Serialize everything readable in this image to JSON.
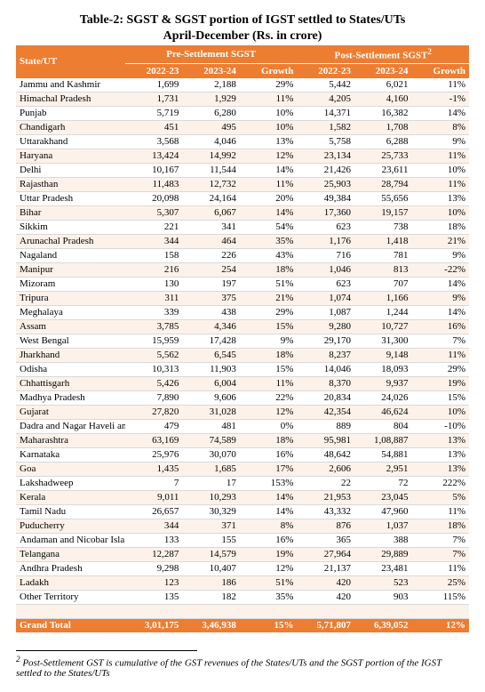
{
  "title_line1": "Table-2: SGST & SGST portion of IGST settled to States/UTs",
  "title_line2": "April-December (Rs. in crore)",
  "header": {
    "state": "State/UT",
    "group1": "Pre-Settlement SGST",
    "group2": "Post-Settlement SGST",
    "sup": "2",
    "y1": "2022-23",
    "y2": "2023-24",
    "growth": "Growth"
  },
  "rows": [
    {
      "s": "Jammu and Kashmir",
      "a": "1,699",
      "b": "2,188",
      "c": "29%",
      "d": "5,442",
      "e": "6,021",
      "f": "11%"
    },
    {
      "s": "Himachal Pradesh",
      "a": "1,731",
      "b": "1,929",
      "c": "11%",
      "d": "4,205",
      "e": "4,160",
      "f": "-1%"
    },
    {
      "s": "Punjab",
      "a": "5,719",
      "b": "6,280",
      "c": "10%",
      "d": "14,371",
      "e": "16,382",
      "f": "14%"
    },
    {
      "s": "Chandigarh",
      "a": "451",
      "b": "495",
      "c": "10%",
      "d": "1,582",
      "e": "1,708",
      "f": "8%"
    },
    {
      "s": "Uttarakhand",
      "a": "3,568",
      "b": "4,046",
      "c": "13%",
      "d": "5,758",
      "e": "6,288",
      "f": "9%"
    },
    {
      "s": "Haryana",
      "a": "13,424",
      "b": "14,992",
      "c": "12%",
      "d": "23,134",
      "e": "25,733",
      "f": "11%"
    },
    {
      "s": "Delhi",
      "a": "10,167",
      "b": "11,544",
      "c": "14%",
      "d": "21,426",
      "e": "23,611",
      "f": "10%"
    },
    {
      "s": "Rajasthan",
      "a": "11,483",
      "b": "12,732",
      "c": "11%",
      "d": "25,903",
      "e": "28,794",
      "f": "11%"
    },
    {
      "s": "Uttar Pradesh",
      "a": "20,098",
      "b": "24,164",
      "c": "20%",
      "d": "49,384",
      "e": "55,656",
      "f": "13%"
    },
    {
      "s": "Bihar",
      "a": "5,307",
      "b": "6,067",
      "c": "14%",
      "d": "17,360",
      "e": "19,157",
      "f": "10%"
    },
    {
      "s": "Sikkim",
      "a": "221",
      "b": "341",
      "c": "54%",
      "d": "623",
      "e": "738",
      "f": "18%"
    },
    {
      "s": "Arunachal Pradesh",
      "a": "344",
      "b": "464",
      "c": "35%",
      "d": "1,176",
      "e": "1,418",
      "f": "21%"
    },
    {
      "s": "Nagaland",
      "a": "158",
      "b": "226",
      "c": "43%",
      "d": "716",
      "e": "781",
      "f": "9%"
    },
    {
      "s": "Manipur",
      "a": "216",
      "b": "254",
      "c": "18%",
      "d": "1,046",
      "e": "813",
      "f": "-22%"
    },
    {
      "s": "Mizoram",
      "a": "130",
      "b": "197",
      "c": "51%",
      "d": "623",
      "e": "707",
      "f": "14%"
    },
    {
      "s": "Tripura",
      "a": "311",
      "b": "375",
      "c": "21%",
      "d": "1,074",
      "e": "1,166",
      "f": "9%"
    },
    {
      "s": "Meghalaya",
      "a": "339",
      "b": "438",
      "c": "29%",
      "d": "1,087",
      "e": "1,244",
      "f": "14%"
    },
    {
      "s": "Assam",
      "a": "3,785",
      "b": "4,346",
      "c": "15%",
      "d": "9,280",
      "e": "10,727",
      "f": "16%"
    },
    {
      "s": "West Bengal",
      "a": "15,959",
      "b": "17,428",
      "c": "9%",
      "d": "29,170",
      "e": "31,300",
      "f": "7%"
    },
    {
      "s": "Jharkhand",
      "a": "5,562",
      "b": "6,545",
      "c": "18%",
      "d": "8,237",
      "e": "9,148",
      "f": "11%"
    },
    {
      "s": "Odisha",
      "a": "10,313",
      "b": "11,903",
      "c": "15%",
      "d": "14,046",
      "e": "18,093",
      "f": "29%"
    },
    {
      "s": "Chhattisgarh",
      "a": "5,426",
      "b": "6,004",
      "c": "11%",
      "d": "8,370",
      "e": "9,937",
      "f": "19%"
    },
    {
      "s": "Madhya Pradesh",
      "a": "7,890",
      "b": "9,606",
      "c": "22%",
      "d": "20,834",
      "e": "24,026",
      "f": "15%"
    },
    {
      "s": "Gujarat",
      "a": "27,820",
      "b": "31,028",
      "c": "12%",
      "d": "42,354",
      "e": "46,624",
      "f": "10%"
    },
    {
      "s": "Dadra and Nagar Haveli an",
      "a": "479",
      "b": "481",
      "c": "0%",
      "d": "889",
      "e": "804",
      "f": "-10%"
    },
    {
      "s": "Maharashtra",
      "a": "63,169",
      "b": "74,589",
      "c": "18%",
      "d": "95,981",
      "e": "1,08,887",
      "f": "13%"
    },
    {
      "s": "Karnataka",
      "a": "25,976",
      "b": "30,070",
      "c": "16%",
      "d": "48,642",
      "e": "54,881",
      "f": "13%"
    },
    {
      "s": "Goa",
      "a": "1,435",
      "b": "1,685",
      "c": "17%",
      "d": "2,606",
      "e": "2,951",
      "f": "13%"
    },
    {
      "s": "Lakshadweep",
      "a": "7",
      "b": "17",
      "c": "153%",
      "d": "22",
      "e": "72",
      "f": "222%"
    },
    {
      "s": "Kerala",
      "a": "9,011",
      "b": "10,293",
      "c": "14%",
      "d": "21,953",
      "e": "23,045",
      "f": "5%"
    },
    {
      "s": "Tamil Nadu",
      "a": "26,657",
      "b": "30,329",
      "c": "14%",
      "d": "43,332",
      "e": "47,960",
      "f": "11%"
    },
    {
      "s": "Puducherry",
      "a": "344",
      "b": "371",
      "c": "8%",
      "d": "876",
      "e": "1,037",
      "f": "18%"
    },
    {
      "s": "Andaman and Nicobar Isla",
      "a": "133",
      "b": "155",
      "c": "16%",
      "d": "365",
      "e": "388",
      "f": "7%"
    },
    {
      "s": "Telangana",
      "a": "12,287",
      "b": "14,579",
      "c": "19%",
      "d": "27,964",
      "e": "29,889",
      "f": "7%"
    },
    {
      "s": "Andhra Pradesh",
      "a": "9,298",
      "b": "10,407",
      "c": "12%",
      "d": "21,137",
      "e": "23,481",
      "f": "11%"
    },
    {
      "s": "Ladakh",
      "a": "123",
      "b": "186",
      "c": "51%",
      "d": "420",
      "e": "523",
      "f": "25%"
    },
    {
      "s": "Other Territory",
      "a": "135",
      "b": "182",
      "c": "35%",
      "d": "420",
      "e": "903",
      "f": "115%"
    }
  ],
  "grand": {
    "s": "Grand Total",
    "a": "3,01,175",
    "b": "3,46,938",
    "c": "15%",
    "d": "5,71,807",
    "e": "6,39,052",
    "f": "12%"
  },
  "footnote_sup": "2",
  "footnote": "Post-Settlement GST is cumulative of the GST revenues of the States/UTs and the SGST portion of the IGST settled to the States/UTs",
  "colors": {
    "header_bg": "#ed7d31",
    "header_fg": "#ffffff",
    "band_bg": "#fdf2ea",
    "border": "#d9d9d9"
  }
}
